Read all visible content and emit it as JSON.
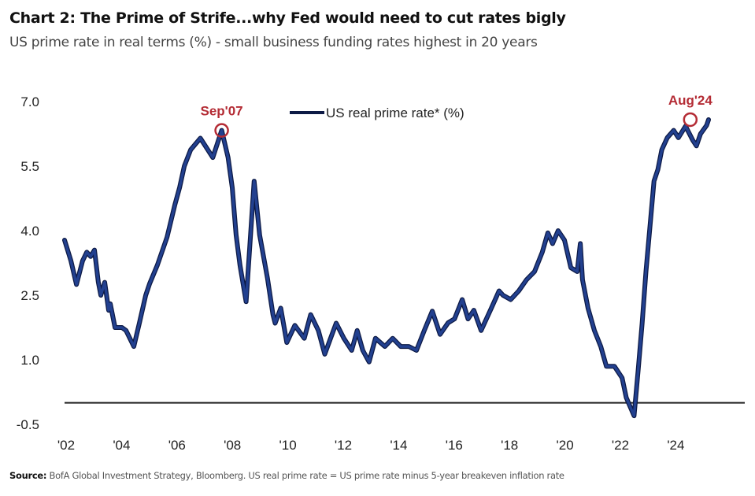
{
  "header": {
    "title": "Chart 2: The Prime of Strife...why Fed would need to cut rates bigly",
    "subtitle": "US prime rate in real terms (%) - small business funding rates highest in 20 years"
  },
  "footer": {
    "source_label": "Source:",
    "source_text": " BofA Global Investment Strategy, Bloomberg. US real prime rate = US prime rate minus 5-year breakeven inflation rate"
  },
  "colors": {
    "series": "#22408f",
    "series_outline": "#0d1a45",
    "annotation": "#b42c35",
    "axis": "#222222"
  },
  "chart_data": {
    "type": "line",
    "title": "Chart 2: The Prime of Strife...why Fed would need to cut rates bigly",
    "subtitle": "US prime rate in real terms (%) - small business funding rates highest in 20 years",
    "xlabel": "",
    "ylabel": "",
    "xlim": [
      2002,
      2026.6
    ],
    "ylim": [
      -0.5,
      7.0
    ],
    "yticks": [
      7.0,
      5.5,
      4.0,
      2.5,
      1.0,
      -0.5
    ],
    "ytick_labels": [
      "7.0",
      "5.5",
      "4.0",
      "2.5",
      "1.0",
      "-0.5"
    ],
    "xticks": [
      2002,
      2004,
      2006,
      2008,
      2010,
      2012,
      2014,
      2016,
      2018,
      2020,
      2022,
      2024
    ],
    "xtick_labels": [
      "'02",
      "'04",
      "'06",
      "'08",
      "'10",
      "'12",
      "'14",
      "'16",
      "'18",
      "'20",
      "'22",
      "'24"
    ],
    "reference_line": 0,
    "grid": false,
    "legend": {
      "position": "top-center",
      "entries": [
        "US real prime rate* (%)"
      ]
    },
    "annotations": [
      {
        "label": "Sep'07",
        "x": 2007.67,
        "y": 6.33
      },
      {
        "label": "Aug'24",
        "x": 2024.58,
        "y": 6.58
      }
    ],
    "series": [
      {
        "name": "US real prime rate* (%)",
        "x": [
          2002.0,
          2002.23,
          2002.43,
          2002.65,
          2002.8,
          2002.94,
          2003.08,
          2003.22,
          2003.31,
          2003.45,
          2003.59,
          2003.65,
          2003.82,
          2004.07,
          2004.22,
          2004.5,
          2004.7,
          2004.93,
          2005.07,
          2005.35,
          2005.7,
          2005.98,
          2006.15,
          2006.32,
          2006.55,
          2006.9,
          2007.35,
          2007.67,
          2007.9,
          2008.05,
          2008.19,
          2008.33,
          2008.55,
          2008.84,
          2009.04,
          2009.32,
          2009.52,
          2009.6,
          2009.8,
          2010.02,
          2010.31,
          2010.65,
          2010.88,
          2011.16,
          2011.39,
          2011.6,
          2011.8,
          2012.08,
          2012.36,
          2012.56,
          2012.76,
          2012.99,
          2013.22,
          2013.56,
          2013.84,
          2014.13,
          2014.42,
          2014.7,
          2014.98,
          2015.27,
          2015.55,
          2015.84,
          2016.07,
          2016.35,
          2016.56,
          2016.77,
          2017.03,
          2017.4,
          2017.68,
          2017.82,
          2018.1,
          2018.39,
          2018.67,
          2018.96,
          2019.24,
          2019.44,
          2019.61,
          2019.81,
          2020.04,
          2020.27,
          2020.5,
          2020.61,
          2020.69,
          2020.89,
          2021.12,
          2021.35,
          2021.55,
          2021.84,
          2022.12,
          2022.27,
          2022.55,
          2022.7,
          2022.84,
          2022.98,
          2023.13,
          2023.27,
          2023.41,
          2023.55,
          2023.75,
          2023.98,
          2024.15,
          2024.41,
          2024.67,
          2024.8,
          2024.95,
          2025.17,
          2025.24
        ],
        "y": [
          3.78,
          3.3,
          2.75,
          3.3,
          3.5,
          3.4,
          3.55,
          2.8,
          2.5,
          2.8,
          2.15,
          2.3,
          1.75,
          1.75,
          1.68,
          1.31,
          1.85,
          2.5,
          2.77,
          3.2,
          3.85,
          4.6,
          5.0,
          5.5,
          5.88,
          6.15,
          5.7,
          6.33,
          5.7,
          5.0,
          3.9,
          3.2,
          2.35,
          5.15,
          3.9,
          2.9,
          2.05,
          1.85,
          2.2,
          1.4,
          1.8,
          1.5,
          2.05,
          1.68,
          1.13,
          1.5,
          1.85,
          1.5,
          1.22,
          1.68,
          1.22,
          0.95,
          1.5,
          1.31,
          1.5,
          1.31,
          1.31,
          1.22,
          1.68,
          2.13,
          1.59,
          1.86,
          1.95,
          2.4,
          1.95,
          2.15,
          1.68,
          2.2,
          2.6,
          2.5,
          2.4,
          2.6,
          2.86,
          3.05,
          3.5,
          3.95,
          3.7,
          4.0,
          3.78,
          3.14,
          3.05,
          3.7,
          2.86,
          2.2,
          1.68,
          1.31,
          0.85,
          0.85,
          0.58,
          0.12,
          -0.3,
          0.76,
          1.84,
          3.05,
          4.14,
          5.15,
          5.42,
          5.88,
          6.16,
          6.33,
          6.16,
          6.43,
          6.1,
          5.97,
          6.25,
          6.45,
          6.58
        ]
      }
    ]
  }
}
